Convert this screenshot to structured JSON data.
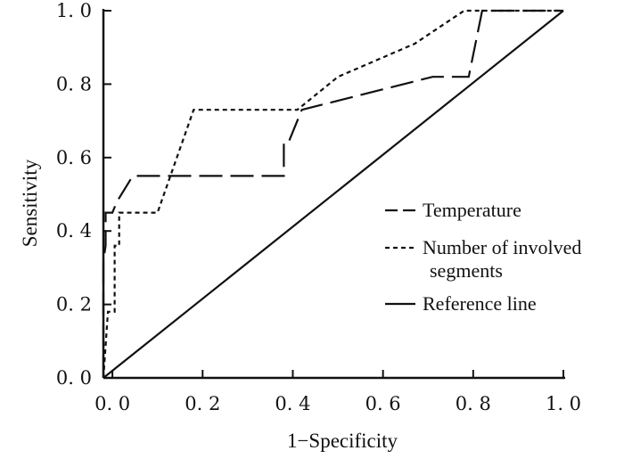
{
  "chart_data": {
    "type": "line",
    "title": "",
    "xlabel": "1−Specificity",
    "ylabel": "Sensitivity",
    "xlim": [
      -0.02,
      1.0
    ],
    "ylim": [
      0.0,
      1.0
    ],
    "xticks": [
      0.0,
      0.2,
      0.4,
      0.6,
      0.8,
      1.0
    ],
    "yticks": [
      0.0,
      0.2,
      0.4,
      0.6,
      0.8,
      1.0
    ],
    "xtick_labels": [
      "0. 0",
      "0. 2",
      "0. 4",
      "0. 6",
      "0. 8",
      "1. 0"
    ],
    "ytick_labels": [
      "0. 0",
      "0. 2",
      "0. 4",
      "0. 6",
      "0. 8",
      "1. 0"
    ],
    "grid": false,
    "legend_position": "right",
    "series": [
      {
        "name": "Temperature",
        "style": "long-dash",
        "x": [
          -0.02,
          -0.02,
          -0.015,
          -0.015,
          0.0,
          0.01,
          0.045,
          0.38,
          0.38,
          0.39,
          0.42,
          0.71,
          0.79,
          0.82,
          1.0
        ],
        "y": [
          0.0,
          0.32,
          0.36,
          0.45,
          0.45,
          0.48,
          0.55,
          0.55,
          0.64,
          0.64,
          0.73,
          0.82,
          0.82,
          1.0,
          1.0
        ]
      },
      {
        "name": "Number of involved segments",
        "legend_lines": [
          "Number of involved",
          "segments"
        ],
        "style": "short-dash",
        "x": [
          -0.02,
          -0.01,
          -0.01,
          0.005,
          0.005,
          0.015,
          0.015,
          0.1,
          0.18,
          0.41,
          0.5,
          0.67,
          0.78,
          1.0
        ],
        "y": [
          0.0,
          0.18,
          0.18,
          0.18,
          0.36,
          0.36,
          0.45,
          0.45,
          0.73,
          0.73,
          0.82,
          0.91,
          1.0,
          1.0
        ]
      },
      {
        "name": "Reference line",
        "style": "solid",
        "x": [
          -0.02,
          1.0
        ],
        "y": [
          0.0,
          1.0
        ]
      }
    ]
  }
}
